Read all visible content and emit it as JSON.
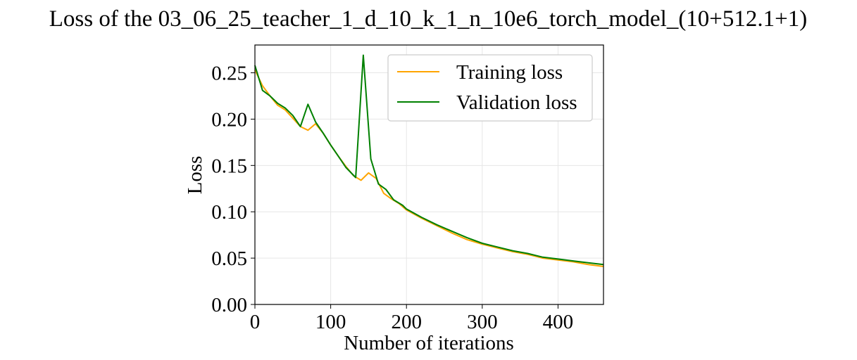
{
  "chart_data": {
    "type": "line",
    "title": "Loss of the 03_06_25_teacher_1_d_10_k_1_n_10e6_torch_model_(10+512.1+1)",
    "xlabel": "Number of iterations",
    "ylabel": "Loss",
    "xlim": [
      0,
      460
    ],
    "ylim": [
      0,
      0.28
    ],
    "xticks": [
      0,
      100,
      200,
      300,
      400
    ],
    "xtick_labels": [
      "0",
      "100",
      "200",
      "300",
      "400"
    ],
    "yticks": [
      0,
      0.05,
      0.1,
      0.15,
      0.2,
      0.25
    ],
    "ytick_labels": [
      "0.00",
      "0.05",
      "0.10",
      "0.15",
      "0.20",
      "0.25"
    ],
    "grid": true,
    "legend_position": "top-right",
    "series": [
      {
        "name": "Training loss",
        "color": "#FFA500",
        "points": [
          [
            0,
            0.253
          ],
          [
            10,
            0.236
          ],
          [
            20,
            0.225
          ],
          [
            30,
            0.215
          ],
          [
            40,
            0.21
          ],
          [
            50,
            0.201
          ],
          [
            60,
            0.192
          ],
          [
            70,
            0.188
          ],
          [
            80,
            0.195
          ],
          [
            90,
            0.185
          ],
          [
            100,
            0.172
          ],
          [
            110,
            0.16
          ],
          [
            120,
            0.149
          ],
          [
            130,
            0.139
          ],
          [
            140,
            0.134
          ],
          [
            150,
            0.142
          ],
          [
            160,
            0.136
          ],
          [
            170,
            0.12
          ],
          [
            180,
            0.114
          ],
          [
            190,
            0.109
          ],
          [
            200,
            0.102
          ],
          [
            220,
            0.093
          ],
          [
            240,
            0.085
          ],
          [
            260,
            0.077
          ],
          [
            280,
            0.07
          ],
          [
            300,
            0.065
          ],
          [
            320,
            0.061
          ],
          [
            340,
            0.057
          ],
          [
            360,
            0.054
          ],
          [
            380,
            0.05
          ],
          [
            400,
            0.048
          ],
          [
            420,
            0.046
          ],
          [
            440,
            0.043
          ],
          [
            460,
            0.041
          ]
        ]
      },
      {
        "name": "Validation loss",
        "color": "#008000",
        "points": [
          [
            0,
            0.258
          ],
          [
            10,
            0.231
          ],
          [
            20,
            0.225
          ],
          [
            30,
            0.217
          ],
          [
            40,
            0.212
          ],
          [
            50,
            0.204
          ],
          [
            60,
            0.192
          ],
          [
            70,
            0.216
          ],
          [
            80,
            0.197
          ],
          [
            90,
            0.185
          ],
          [
            100,
            0.172
          ],
          [
            110,
            0.16
          ],
          [
            120,
            0.148
          ],
          [
            133,
            0.137
          ],
          [
            143,
            0.269
          ],
          [
            153,
            0.157
          ],
          [
            163,
            0.13
          ],
          [
            173,
            0.124
          ],
          [
            183,
            0.113
          ],
          [
            195,
            0.107
          ],
          [
            200,
            0.103
          ],
          [
            220,
            0.094
          ],
          [
            240,
            0.086
          ],
          [
            260,
            0.079
          ],
          [
            280,
            0.072
          ],
          [
            300,
            0.066
          ],
          [
            320,
            0.062
          ],
          [
            340,
            0.058
          ],
          [
            360,
            0.055
          ],
          [
            380,
            0.051
          ],
          [
            400,
            0.049
          ],
          [
            420,
            0.047
          ],
          [
            440,
            0.045
          ],
          [
            460,
            0.043
          ]
        ]
      }
    ]
  }
}
